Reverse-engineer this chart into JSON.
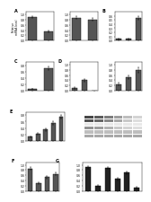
{
  "background": "#ffffff",
  "bar_color": "#555555",
  "bar_color_dark": "#222222",
  "fontsize_tick": 2.2,
  "fontsize_panel": 3.5,
  "fontsize_ylabel": 2.2,
  "linewidth": 0.3,
  "bar_width": 0.55,
  "row0": {
    "panelA": {
      "label": "A",
      "vals": [
        0.9,
        0.35
      ],
      "ylim": [
        0,
        1.1
      ],
      "yticks": [
        0,
        0.2,
        0.4,
        0.6,
        0.8,
        1.0
      ],
      "errors": [
        0.05,
        0.04
      ],
      "colors": [
        "#555555",
        "#555555"
      ]
    },
    "panelA2": {
      "label": "",
      "vals": [
        0.88,
        0.8
      ],
      "ylim": [
        0,
        1.1
      ],
      "yticks": [
        0,
        0.2,
        0.4,
        0.6,
        0.8,
        1.0
      ],
      "errors": [
        0.04,
        0.05
      ],
      "colors": [
        "#555555",
        "#555555"
      ]
    },
    "panelB": {
      "label": "B",
      "vals": [
        0.04,
        0.04,
        0.55
      ],
      "ylim": [
        0,
        0.7
      ],
      "yticks": [
        0,
        0.1,
        0.2,
        0.3,
        0.4,
        0.5,
        0.6
      ],
      "errors": [
        0.01,
        0.01,
        0.05
      ],
      "colors": [
        "#555555",
        "#555555",
        "#555555"
      ]
    }
  },
  "row1": {
    "panelC": {
      "label": "C",
      "vals": [
        0.05,
        0.7
      ],
      "ylim": [
        0,
        0.9
      ],
      "yticks": [
        0,
        0.2,
        0.4,
        0.6,
        0.8
      ],
      "errors": [
        0.01,
        0.06
      ],
      "colors": [
        "#555555",
        "#555555"
      ]
    },
    "panelD": {
      "label": "D",
      "vals": [
        0.1,
        0.4,
        0.0
      ],
      "ylim": [
        0,
        1.1
      ],
      "yticks": [
        0,
        0.2,
        0.4,
        0.6,
        0.8,
        1.0
      ],
      "errors": [
        0.02,
        0.05,
        0.0
      ],
      "colors": [
        "#555555",
        "#555555",
        "#ffffff"
      ]
    },
    "panelD2": {
      "label": "",
      "vals": [
        0.25,
        0.5,
        0.8
      ],
      "ylim": [
        0,
        1.1
      ],
      "yticks": [
        0,
        0.2,
        0.4,
        0.6,
        0.8,
        1.0
      ],
      "errors": [
        0.04,
        0.07,
        0.1
      ],
      "colors": [
        "#555555",
        "#555555",
        "#555555"
      ]
    }
  },
  "row2": {
    "panelE": {
      "label": "E",
      "vals": [
        0.12,
        0.22,
        0.35,
        0.55,
        0.75
      ],
      "ylim": [
        0,
        0.9
      ],
      "yticks": [
        0,
        0.2,
        0.4,
        0.6,
        0.8
      ],
      "errors": [
        0.02,
        0.03,
        0.04,
        0.05,
        0.06
      ],
      "colors": [
        "#555555",
        "#555555",
        "#555555",
        "#555555",
        "#555555"
      ]
    },
    "wb_bands": [
      [
        0.85,
        0.75,
        0.6,
        0.45,
        0.3,
        0.2
      ],
      [
        0.8,
        0.7,
        0.55,
        0.4,
        0.25,
        0.15
      ],
      [
        0.1,
        0.1,
        0.1,
        0.1,
        0.1,
        0.1
      ],
      [
        0.5,
        0.45,
        0.35,
        0.25,
        0.2,
        0.15
      ],
      [
        0.3,
        0.3,
        0.3,
        0.3,
        0.3,
        0.3
      ],
      [
        0.4,
        0.4,
        0.4,
        0.4,
        0.4,
        0.4
      ]
    ],
    "wb_bg": "#cccccc"
  },
  "row3": {
    "panelF": {
      "label": "F",
      "vals": [
        0.85,
        0.3,
        0.52,
        0.65
      ],
      "ylim": [
        0,
        1.1
      ],
      "yticks": [
        0,
        0.2,
        0.4,
        0.6,
        0.8,
        1.0
      ],
      "errors": [
        0.05,
        0.04,
        0.05,
        0.06
      ],
      "colors": [
        "#555555",
        "#555555",
        "#555555",
        "#555555"
      ]
    },
    "panelG": {
      "label": "G",
      "vals": [
        0.9,
        0.18,
        0.88,
        0.45,
        0.7,
        0.12
      ],
      "ylim": [
        0,
        1.1
      ],
      "yticks": [
        0,
        0.2,
        0.4,
        0.6,
        0.8,
        1.0
      ],
      "errors": [
        0.04,
        0.03,
        0.05,
        0.04,
        0.05,
        0.02
      ],
      "colors": [
        "#222222",
        "#222222",
        "#222222",
        "#222222",
        "#222222",
        "#222222"
      ]
    }
  }
}
